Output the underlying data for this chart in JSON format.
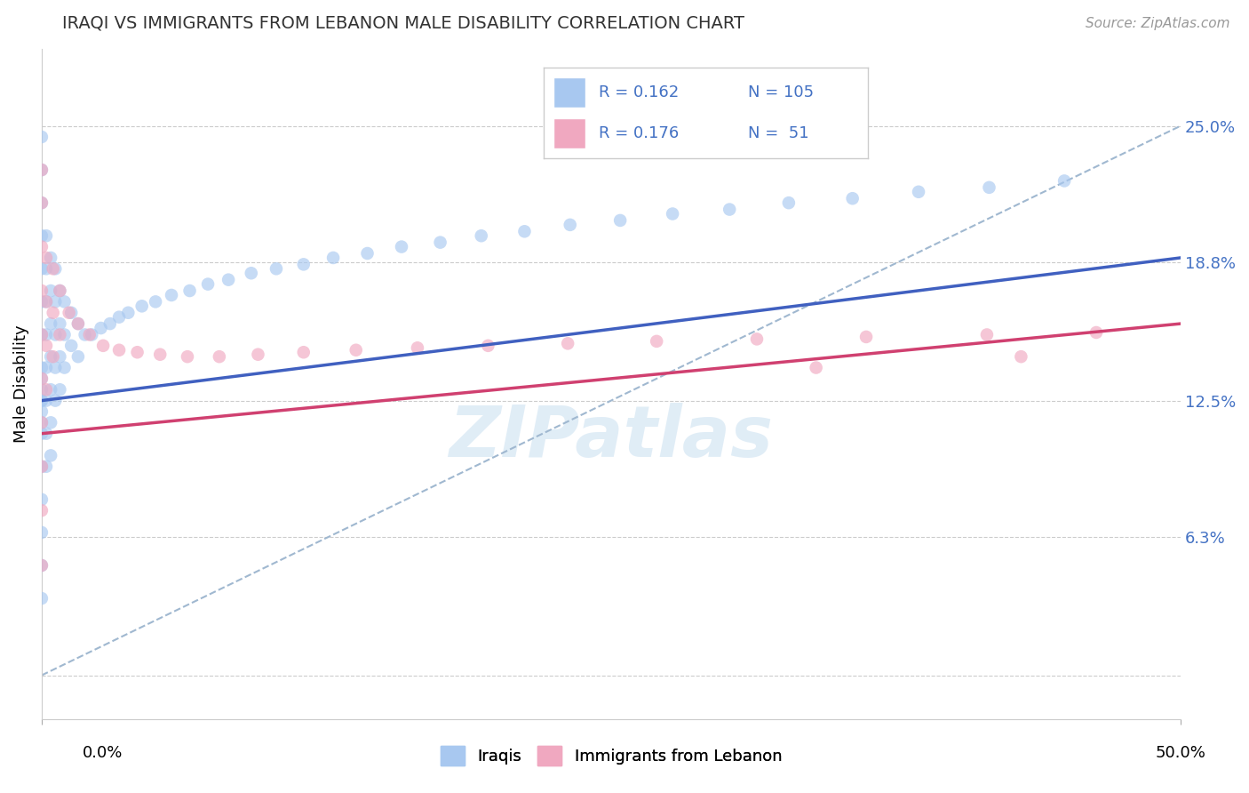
{
  "title": "IRAQI VS IMMIGRANTS FROM LEBANON MALE DISABILITY CORRELATION CHART",
  "source": "Source: ZipAtlas.com",
  "ylabel": "Male Disability",
  "xlim": [
    0.0,
    0.5
  ],
  "ylim": [
    -0.02,
    0.285
  ],
  "yticks": [
    0.0,
    0.063,
    0.125,
    0.188,
    0.25
  ],
  "ytick_labels": [
    "",
    "6.3%",
    "12.5%",
    "18.8%",
    "25.0%"
  ],
  "color_blue": "#a8c8f0",
  "color_pink": "#f0a8c0",
  "line_blue": "#4060c0",
  "line_pink": "#d04070",
  "line_dashed_color": "#a0b8d0",
  "watermark": "ZIPatlas",
  "iraqis_x": [
    0.0,
    0.0,
    0.0,
    0.0,
    0.0,
    0.0,
    0.0,
    0.0,
    0.0,
    0.0,
    0.0,
    0.0,
    0.0,
    0.0,
    0.0,
    0.0,
    0.0,
    0.0,
    0.0,
    0.0,
    0.002,
    0.002,
    0.002,
    0.002,
    0.002,
    0.002,
    0.002,
    0.002,
    0.004,
    0.004,
    0.004,
    0.004,
    0.004,
    0.004,
    0.004,
    0.006,
    0.006,
    0.006,
    0.006,
    0.006,
    0.008,
    0.008,
    0.008,
    0.008,
    0.01,
    0.01,
    0.01,
    0.013,
    0.013,
    0.016,
    0.016,
    0.019,
    0.022,
    0.026,
    0.03,
    0.034,
    0.038,
    0.044,
    0.05,
    0.057,
    0.065,
    0.073,
    0.082,
    0.092,
    0.103,
    0.115,
    0.128,
    0.143,
    0.158,
    0.175,
    0.193,
    0.212,
    0.232,
    0.254,
    0.277,
    0.302,
    0.328,
    0.356,
    0.385,
    0.416,
    0.449
  ],
  "iraqis_y": [
    0.245,
    0.23,
    0.215,
    0.2,
    0.185,
    0.17,
    0.155,
    0.14,
    0.125,
    0.11,
    0.095,
    0.08,
    0.065,
    0.05,
    0.035,
    0.125,
    0.13,
    0.135,
    0.12,
    0.115,
    0.2,
    0.185,
    0.17,
    0.155,
    0.14,
    0.125,
    0.11,
    0.095,
    0.19,
    0.175,
    0.16,
    0.145,
    0.13,
    0.115,
    0.1,
    0.185,
    0.17,
    0.155,
    0.14,
    0.125,
    0.175,
    0.16,
    0.145,
    0.13,
    0.17,
    0.155,
    0.14,
    0.165,
    0.15,
    0.16,
    0.145,
    0.155,
    0.155,
    0.158,
    0.16,
    0.163,
    0.165,
    0.168,
    0.17,
    0.173,
    0.175,
    0.178,
    0.18,
    0.183,
    0.185,
    0.187,
    0.19,
    0.192,
    0.195,
    0.197,
    0.2,
    0.202,
    0.205,
    0.207,
    0.21,
    0.212,
    0.215,
    0.217,
    0.22,
    0.222,
    0.225
  ],
  "lebanon_x": [
    0.0,
    0.0,
    0.0,
    0.0,
    0.0,
    0.0,
    0.0,
    0.0,
    0.0,
    0.0,
    0.002,
    0.002,
    0.002,
    0.002,
    0.005,
    0.005,
    0.005,
    0.008,
    0.008,
    0.012,
    0.016,
    0.021,
    0.027,
    0.034,
    0.042,
    0.052,
    0.064,
    0.078,
    0.095,
    0.115,
    0.138,
    0.165,
    0.196,
    0.231,
    0.27,
    0.314,
    0.362,
    0.415,
    0.463,
    0.34,
    0.43
  ],
  "lebanon_y": [
    0.23,
    0.215,
    0.195,
    0.175,
    0.155,
    0.135,
    0.115,
    0.095,
    0.075,
    0.05,
    0.19,
    0.17,
    0.15,
    0.13,
    0.185,
    0.165,
    0.145,
    0.175,
    0.155,
    0.165,
    0.16,
    0.155,
    0.15,
    0.148,
    0.147,
    0.146,
    0.145,
    0.145,
    0.146,
    0.147,
    0.148,
    0.149,
    0.15,
    0.151,
    0.152,
    0.153,
    0.154,
    0.155,
    0.156,
    0.14,
    0.145
  ],
  "iraqis_line_x": [
    0.0,
    0.5
  ],
  "iraqis_line_y": [
    0.125,
    0.19
  ],
  "lebanon_line_x": [
    0.0,
    0.5
  ],
  "lebanon_line_y": [
    0.11,
    0.16
  ],
  "dashed_line_x": [
    0.0,
    0.5
  ],
  "dashed_line_y": [
    0.0,
    0.25
  ]
}
